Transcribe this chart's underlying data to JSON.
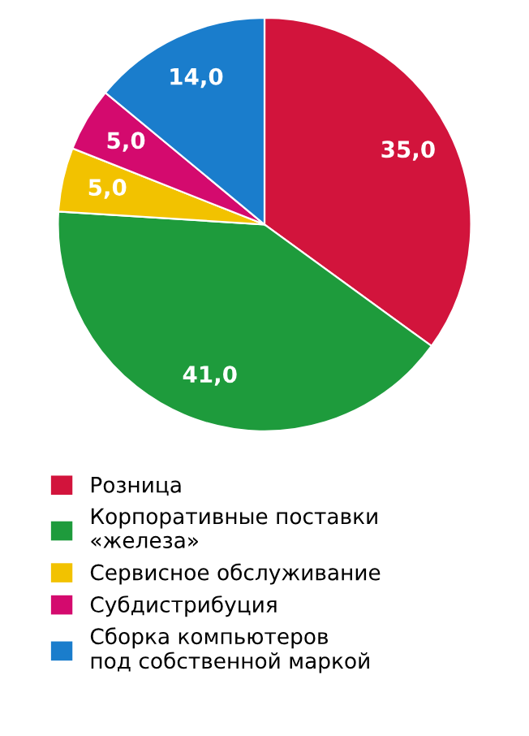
{
  "chart_data": {
    "type": "pie",
    "categories": [
      "Розница",
      "Корпоративные поставки\n«железа»",
      "Сервисное обслуживание",
      "Субдистрибуция",
      "Сборка компьютеров\nпод собственной маркой"
    ],
    "values": [
      35.0,
      41.0,
      5.0,
      5.0,
      14.0
    ],
    "value_labels": [
      "35,0",
      "41,0",
      "5,0",
      "5,0",
      "14,0"
    ],
    "colors": [
      "#d2143c",
      "#1e9b3c",
      "#f2c200",
      "#d40a6e",
      "#1a7dcc"
    ],
    "legend": "bottom"
  }
}
